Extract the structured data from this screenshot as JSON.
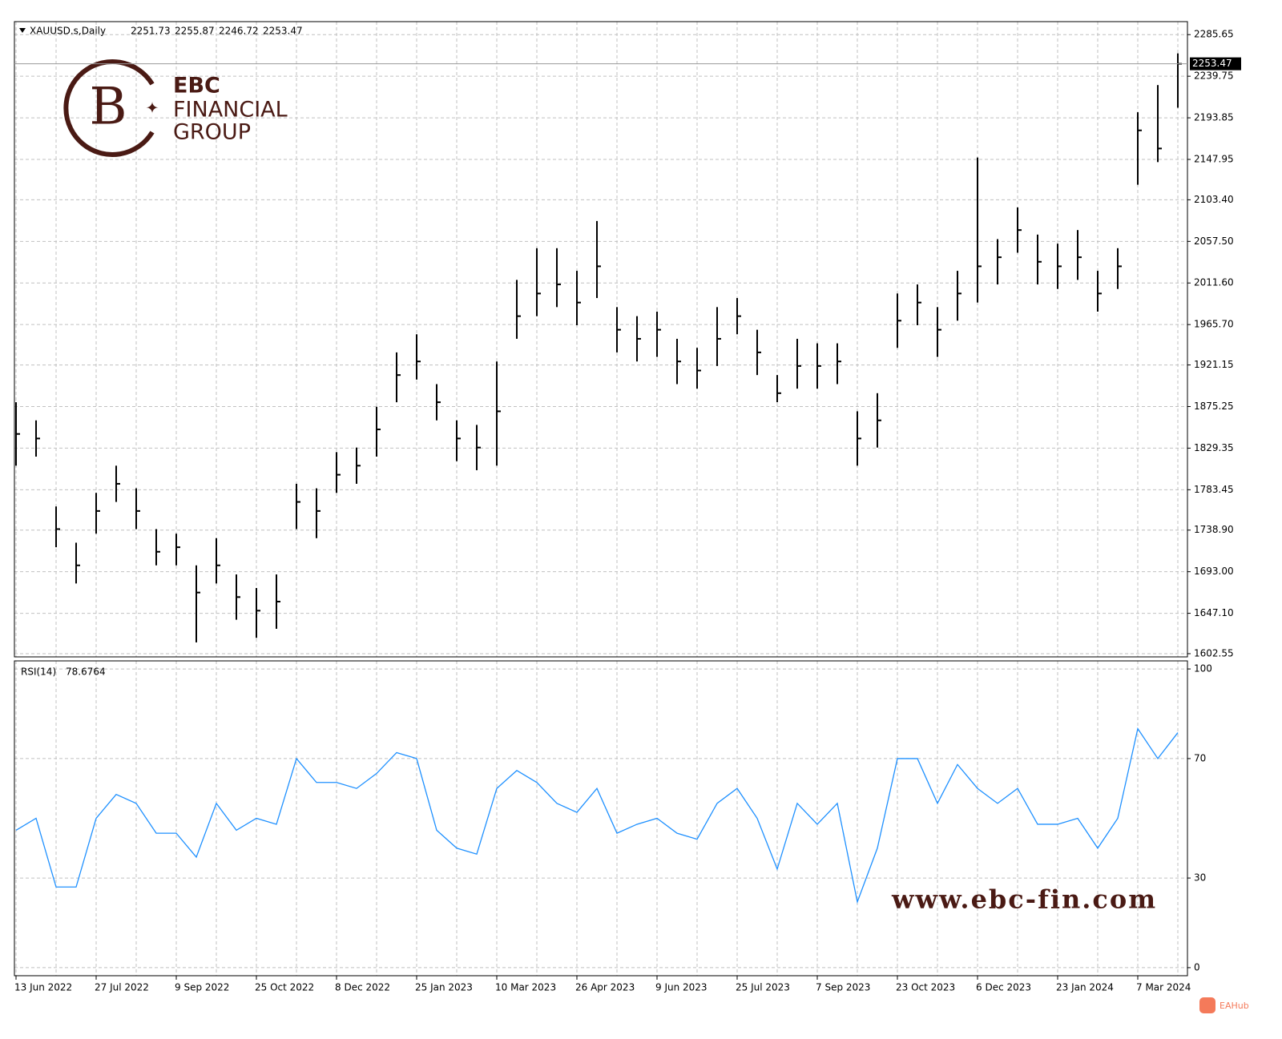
{
  "chart_data": [
    {
      "type": "ohlc",
      "symbol": "XAUUSD.s,Daily",
      "quote": [
        2251.73,
        2255.87,
        2246.72,
        2253.47
      ],
      "categories": [
        "13 Jun 2022",
        null,
        null,
        null,
        "27 Jul 2022",
        null,
        null,
        null,
        "9 Sep 2022",
        null,
        null,
        null,
        "25 Oct 2022",
        null,
        null,
        null,
        "8 Dec 2022",
        null,
        null,
        null,
        "25 Jan 2023",
        null,
        null,
        null,
        "10 Mar 2023",
        null,
        null,
        null,
        "26 Apr 2023",
        null,
        null,
        null,
        "9 Jun 2023",
        null,
        null,
        null,
        "25 Jul 2023",
        null,
        null,
        null,
        "7 Sep 2023",
        null,
        null,
        null,
        "23 Oct 2023",
        null,
        null,
        null,
        "6 Dec 2023",
        null,
        null,
        null,
        "23 Jan 2024",
        null,
        null,
        null,
        "7 Mar 2024",
        null,
        null
      ],
      "high": [
        1880,
        1860,
        1765,
        1725,
        1780,
        1810,
        1785,
        1740,
        1735,
        1700,
        1730,
        1690,
        1675,
        1690,
        1790,
        1785,
        1825,
        1830,
        1875,
        1935,
        1955,
        1900,
        1860,
        1855,
        1925,
        2015,
        2050,
        2050,
        2025,
        2080,
        1985,
        1975,
        1980,
        1950,
        1940,
        1985,
        1995,
        1960,
        1910,
        1950,
        1945,
        1945,
        1870,
        1890,
        2000,
        2010,
        1985,
        2025,
        2150,
        2060,
        2095,
        2065,
        2055,
        2070,
        2025,
        2050,
        2200,
        2230,
        2265
      ],
      "low": [
        1810,
        1820,
        1720,
        1680,
        1735,
        1770,
        1740,
        1700,
        1700,
        1615,
        1680,
        1640,
        1620,
        1630,
        1740,
        1730,
        1780,
        1790,
        1820,
        1880,
        1905,
        1860,
        1815,
        1805,
        1810,
        1950,
        1975,
        1985,
        1965,
        1995,
        1935,
        1925,
        1930,
        1900,
        1895,
        1920,
        1955,
        1910,
        1880,
        1895,
        1895,
        1900,
        1810,
        1830,
        1940,
        1965,
        1930,
        1970,
        1990,
        2010,
        2045,
        2010,
        2005,
        2015,
        1980,
        2005,
        2120,
        2145,
        2205
      ],
      "close": [
        1845,
        1840,
        1740,
        1700,
        1760,
        1790,
        1760,
        1715,
        1720,
        1670,
        1700,
        1665,
        1650,
        1660,
        1770,
        1760,
        1800,
        1810,
        1850,
        1910,
        1925,
        1880,
        1840,
        1830,
        1870,
        1975,
        2000,
        2010,
        1990,
        2030,
        1960,
        1950,
        1960,
        1925,
        1915,
        1950,
        1975,
        1935,
        1890,
        1920,
        1920,
        1925,
        1840,
        1860,
        1970,
        1990,
        1960,
        2000,
        2030,
        2040,
        2070,
        2035,
        2030,
        2040,
        2000,
        2030,
        2180,
        2160,
        2253.47
      ],
      "color": "#000000",
      "ylim": [
        1599,
        2300
      ],
      "yticks": [
        2285.65,
        2239.75,
        2193.85,
        2147.95,
        {
          "value": 2103.4,
          "label": "2103.40"
        },
        {
          "value": 2057.5,
          "label": "2057.50"
        },
        {
          "value": 2011.6,
          "label": "2011.60"
        },
        {
          "value": 1965.7,
          "label": "1965.70"
        },
        1921.15,
        1875.25,
        1829.35,
        1783.45,
        {
          "value": 1738.9,
          "label": "1738.90"
        },
        {
          "value": 1693,
          "label": "1693.00"
        },
        {
          "value": 1647.1,
          "label": "1647.10"
        },
        1602.55
      ],
      "grid": true
    },
    {
      "type": "line",
      "current": 78.6764,
      "series": [
        {
          "name": "RSI(14)",
          "color": "#1e90ff",
          "values": [
            46,
            50,
            27,
            27,
            50,
            58,
            55,
            45,
            45,
            37,
            55,
            46,
            50,
            48,
            70,
            62,
            62,
            60,
            65,
            72,
            70,
            46,
            40,
            38,
            60,
            66,
            62,
            55,
            52,
            60,
            45,
            48,
            50,
            45,
            43,
            55,
            60,
            50,
            33,
            55,
            48,
            55,
            22,
            40,
            70,
            70,
            55,
            68,
            60,
            55,
            60,
            48,
            48,
            50,
            40,
            50,
            80,
            70,
            78.68
          ]
        }
      ],
      "ylim": [
        -2.7,
        102.7
      ],
      "yticks": [
        100,
        70,
        30,
        0
      ],
      "grid": true
    }
  ],
  "logo": {
    "line1": "EBC",
    "line2": "FINANCIAL",
    "line3": "GROUP"
  },
  "watermark": "www.ebc-fin.com",
  "badge": "EAHub"
}
